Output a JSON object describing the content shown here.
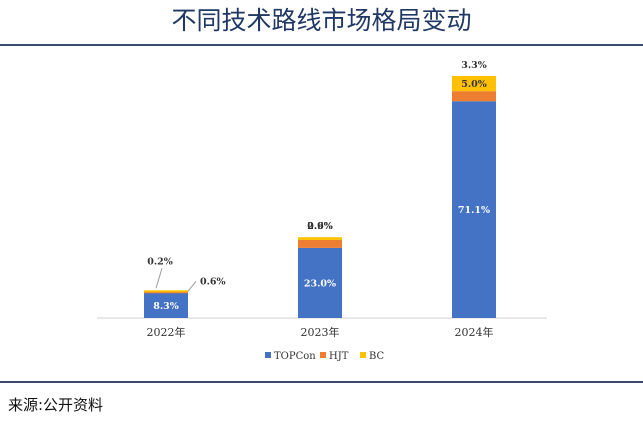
{
  "header": {
    "title": "不同技术路线市场格局变动"
  },
  "footer": {
    "source": "来源:公开资料"
  },
  "chart_data": {
    "type": "bar",
    "stacked": true,
    "categories": [
      "2022年",
      "2023年",
      "2024年"
    ],
    "series": [
      {
        "name": "TOPCon",
        "values": [
          8.3,
          23.0,
          71.1
        ],
        "labels": [
          "8.3%",
          "23.0%",
          "71.1%"
        ],
        "color": "#4472c4"
      },
      {
        "name": "HJT",
        "values": [
          0.2,
          2.6,
          3.3
        ],
        "labels": [
          "0.2%",
          "2.6%",
          "3.3%"
        ],
        "color": "#ed7d31"
      },
      {
        "name": "BC",
        "values": [
          0.6,
          0.9,
          5.0
        ],
        "labels": [
          "0.6%",
          "0.9%",
          "5.0%"
        ],
        "color": "#ffc000"
      }
    ],
    "ylim": [
      0,
      82
    ],
    "grid": false,
    "legend": "bottom"
  }
}
